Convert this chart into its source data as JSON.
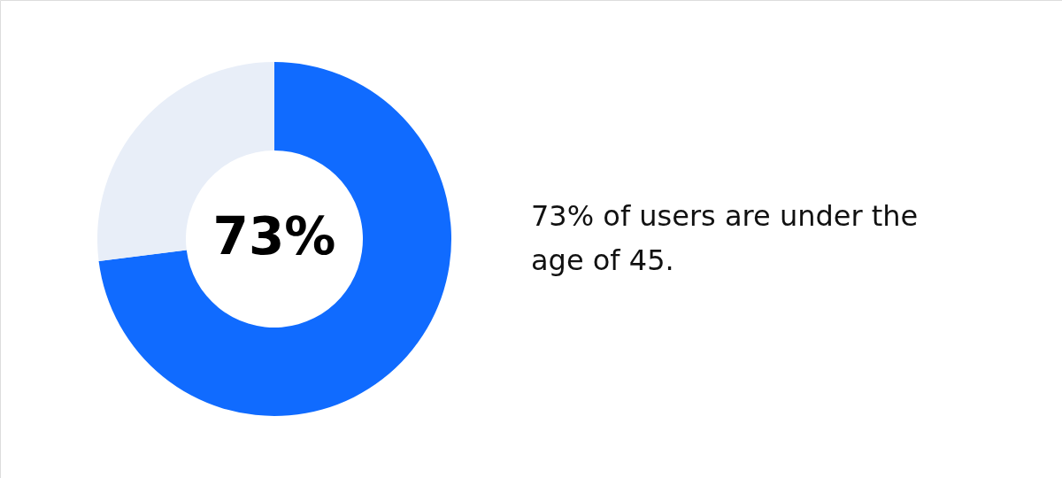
{
  "chart_data": {
    "type": "donut",
    "categories": [
      null,
      null
    ],
    "values": [
      73,
      27
    ],
    "colors": [
      "#106bff",
      "#e8eef8"
    ],
    "value_labels": [
      "73%",
      null
    ],
    "legend": false,
    "annotations": [
      "73% of users are under the age of 45."
    ]
  }
}
